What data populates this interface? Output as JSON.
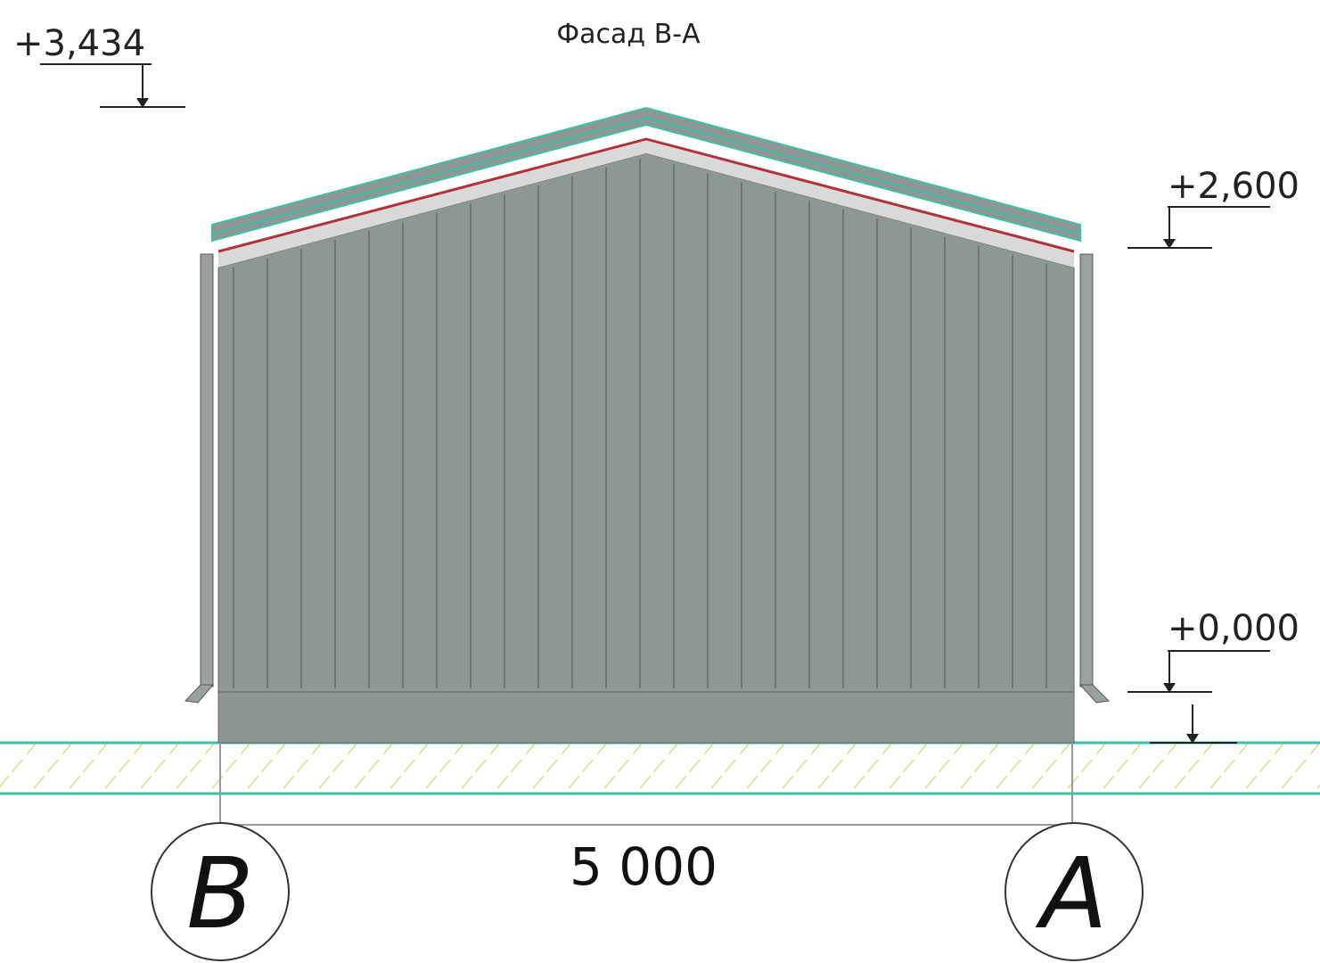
{
  "title": "Фасад В-А",
  "levels": [
    {
      "label": "+3,434"
    },
    {
      "label": "+2,600"
    },
    {
      "label": "+0,000"
    }
  ],
  "dimension": {
    "label": "5 000"
  },
  "axes": [
    {
      "label": "В"
    },
    {
      "label": "А"
    }
  ]
}
